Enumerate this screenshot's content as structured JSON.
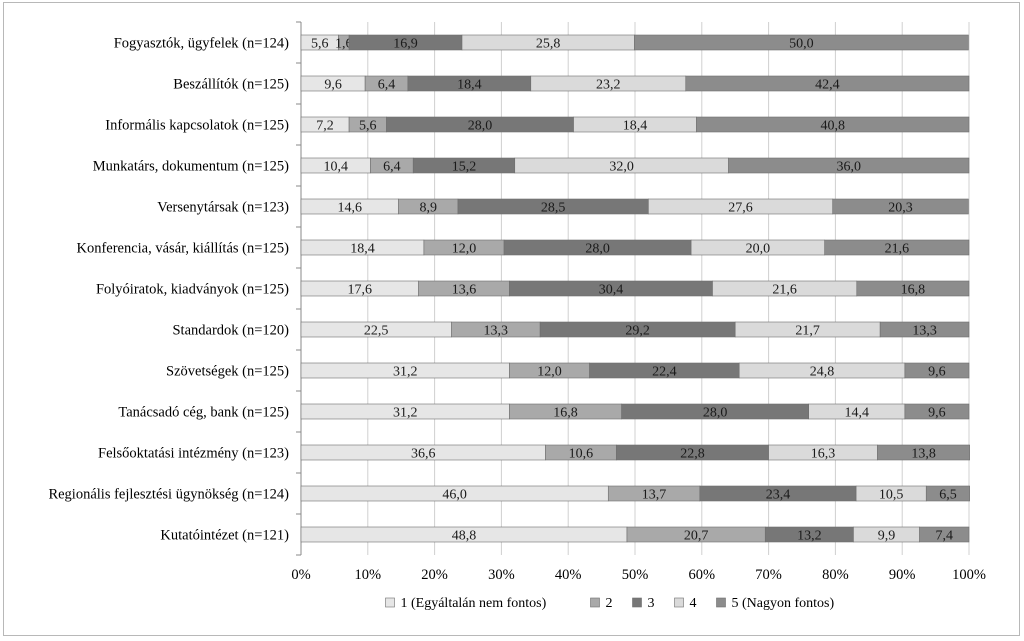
{
  "chart_data": {
    "type": "bar",
    "orientation": "horizontal",
    "stacked": "percent",
    "categories": [
      "Fogyasztók, ügyfelek (n=124)",
      "Beszállítók (n=125)",
      "Informális kapcsolatok (n=125)",
      "Munkatárs, dokumentum (n=125)",
      "Versenytársak (n=123)",
      "Konferencia, vásár, kiállítás (n=125)",
      "Folyóiratok, kiadványok (n=125)",
      "Standardok (n=120)",
      "Szövetségek (n=125)",
      "Tanácsadó cég, bank (n=125)",
      "Felsőoktatási intézmény (n=123)",
      "Regionális fejlesztési ügynökség (n=124)",
      "Kutatóintézet (n=121)"
    ],
    "series": [
      {
        "name": "1 (Egyáltalán nem fontos)",
        "color": "#e6e6e6",
        "values": [
          5.6,
          9.6,
          7.2,
          10.4,
          14.6,
          18.4,
          17.6,
          22.5,
          31.2,
          31.2,
          36.6,
          46.0,
          48.8
        ],
        "labels": [
          "5,6",
          "9,6",
          "7,2",
          "10,4",
          "14,6",
          "18,4",
          "17,6",
          "22,5",
          "31,2",
          "31,2",
          "36,6",
          "46,0",
          "48,8"
        ]
      },
      {
        "name": "2",
        "color": "#a9a9a9",
        "values": [
          1.6,
          6.4,
          5.6,
          6.4,
          8.9,
          12.0,
          13.6,
          13.3,
          12.0,
          16.8,
          10.6,
          13.7,
          20.7
        ],
        "labels": [
          "1,6",
          "6,4",
          "5,6",
          "6,4",
          "8,9",
          "12,0",
          "13,6",
          "13,3",
          "12,0",
          "16,8",
          "10,6",
          "13,7",
          "20,7"
        ]
      },
      {
        "name": "3",
        "color": "#777777",
        "values": [
          16.9,
          18.4,
          28.0,
          15.2,
          28.5,
          28.0,
          30.4,
          29.2,
          22.4,
          28.0,
          22.8,
          23.4,
          13.2
        ],
        "labels": [
          "16,9",
          "18,4",
          "28,0",
          "15,2",
          "28,5",
          "28,0",
          "30,4",
          "29,2",
          "22,4",
          "28,0",
          "22,8",
          "23,4",
          "13,2"
        ]
      },
      {
        "name": "4",
        "color": "#dadada",
        "values": [
          25.8,
          23.2,
          18.4,
          32.0,
          27.6,
          20.0,
          21.6,
          21.7,
          24.8,
          14.4,
          16.3,
          10.5,
          9.9
        ],
        "labels": [
          "25,8",
          "23,2",
          "18,4",
          "32,0",
          "27,6",
          "20,0",
          "21,6",
          "21,7",
          "24,8",
          "14,4",
          "16,3",
          "10,5",
          "9,9"
        ]
      },
      {
        "name": "5 (Nagyon fontos)",
        "color": "#8c8c8c",
        "values": [
          50.0,
          42.4,
          40.8,
          36.0,
          20.3,
          21.6,
          16.8,
          13.3,
          9.6,
          9.6,
          13.8,
          6.5,
          7.4
        ],
        "labels": [
          "50,0",
          "42,4",
          "40,8",
          "36,0",
          "20,3",
          "21,6",
          "16,8",
          "13,3",
          "9,6",
          "9,6",
          "13,8",
          "6,5",
          "7,4"
        ]
      }
    ],
    "x_ticks": [
      "0%",
      "10%",
      "20%",
      "30%",
      "40%",
      "50%",
      "60%",
      "70%",
      "80%",
      "90%",
      "100%"
    ],
    "xlim": [
      0,
      100
    ],
    "grid": true,
    "legend": "bottom"
  }
}
